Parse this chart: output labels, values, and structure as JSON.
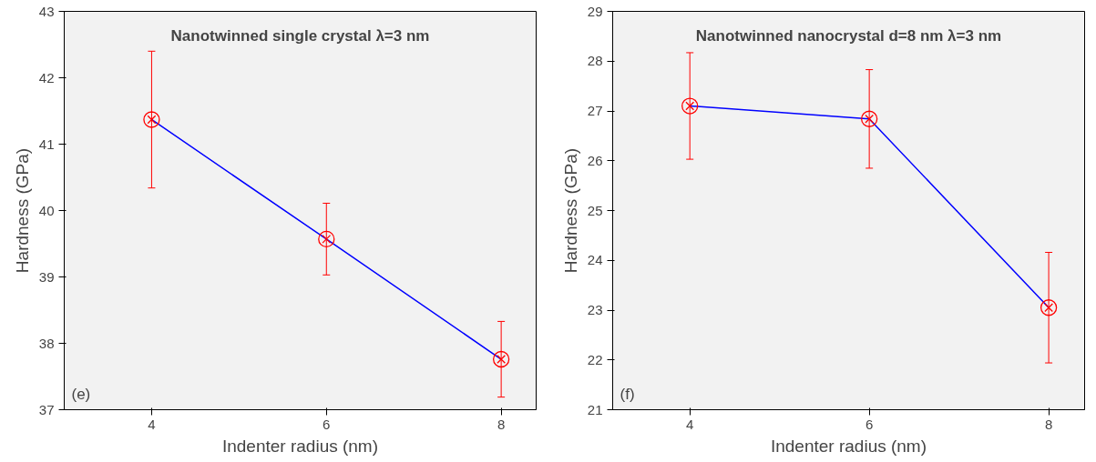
{
  "chart_data": [
    {
      "type": "line",
      "title": "Nanotwinned single crystal λ=3 nm",
      "xlabel": "Indenter radius (nm)",
      "ylabel": "Hardness (GPa)",
      "x": [
        4,
        6,
        8
      ],
      "series": [
        {
          "color": "#0000ff",
          "values": [
            41.37,
            39.57,
            37.76
          ],
          "errors": [
            1.03,
            0.54,
            0.57
          ]
        }
      ],
      "xlim": [
        3,
        8.4
      ],
      "xticks": [
        4,
        6,
        8
      ],
      "ylim": [
        37,
        43
      ],
      "yticks": [
        37,
        38,
        39,
        40,
        41,
        42,
        43
      ],
      "marker": "circle",
      "grid": false,
      "annotations": [
        "(e)"
      ]
    },
    {
      "type": "line",
      "title": "Nanotwinned nanocrystal d=8 nm λ=3 nm",
      "xlabel": "Indenter radius (nm)",
      "ylabel": "Hardness (GPa)",
      "x": [
        4,
        6,
        8
      ],
      "series": [
        {
          "color": "#0000ff",
          "values": [
            27.1,
            26.84,
            23.05
          ],
          "errors": [
            1.07,
            0.99,
            1.11
          ]
        }
      ],
      "xlim": [
        3.14,
        8.4
      ],
      "xticks": [
        4,
        6,
        8
      ],
      "ylim": [
        21,
        29
      ],
      "yticks": [
        21,
        22,
        23,
        24,
        25,
        26,
        27,
        28,
        29
      ],
      "marker": "circle",
      "grid": false,
      "annotations": [
        "(f)"
      ]
    }
  ]
}
